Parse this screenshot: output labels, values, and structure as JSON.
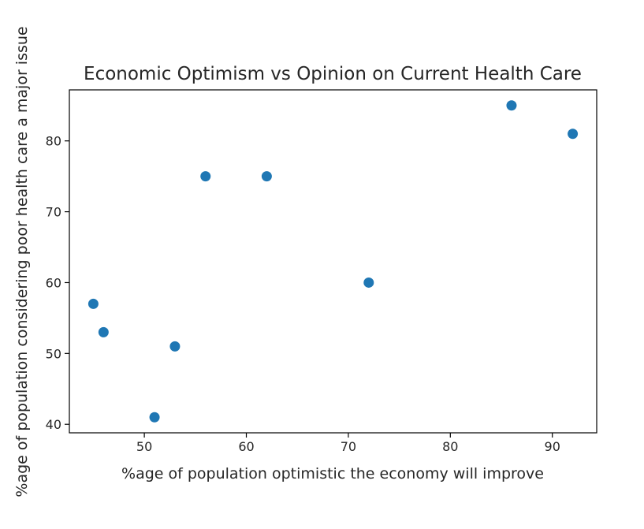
{
  "chart_data": {
    "type": "scatter",
    "title": "Economic Optimism vs Opinion on Current Health Care",
    "xlabel": "%age of population optimistic the economy will improve",
    "ylabel": "%age of population considering poor health care a major issue",
    "xlim": [
      42.65,
      94.35
    ],
    "ylim": [
      38.8,
      87.2
    ],
    "xticks": [
      50,
      60,
      70,
      80,
      90
    ],
    "yticks": [
      40,
      50,
      60,
      70,
      80
    ],
    "grid": false,
    "marker_color": "#1f77b4",
    "points": [
      {
        "x": 45,
        "y": 57
      },
      {
        "x": 46,
        "y": 53
      },
      {
        "x": 51,
        "y": 41
      },
      {
        "x": 53,
        "y": 51
      },
      {
        "x": 56,
        "y": 75
      },
      {
        "x": 62,
        "y": 75
      },
      {
        "x": 72,
        "y": 60
      },
      {
        "x": 86,
        "y": 85
      },
      {
        "x": 92,
        "y": 81
      }
    ]
  }
}
